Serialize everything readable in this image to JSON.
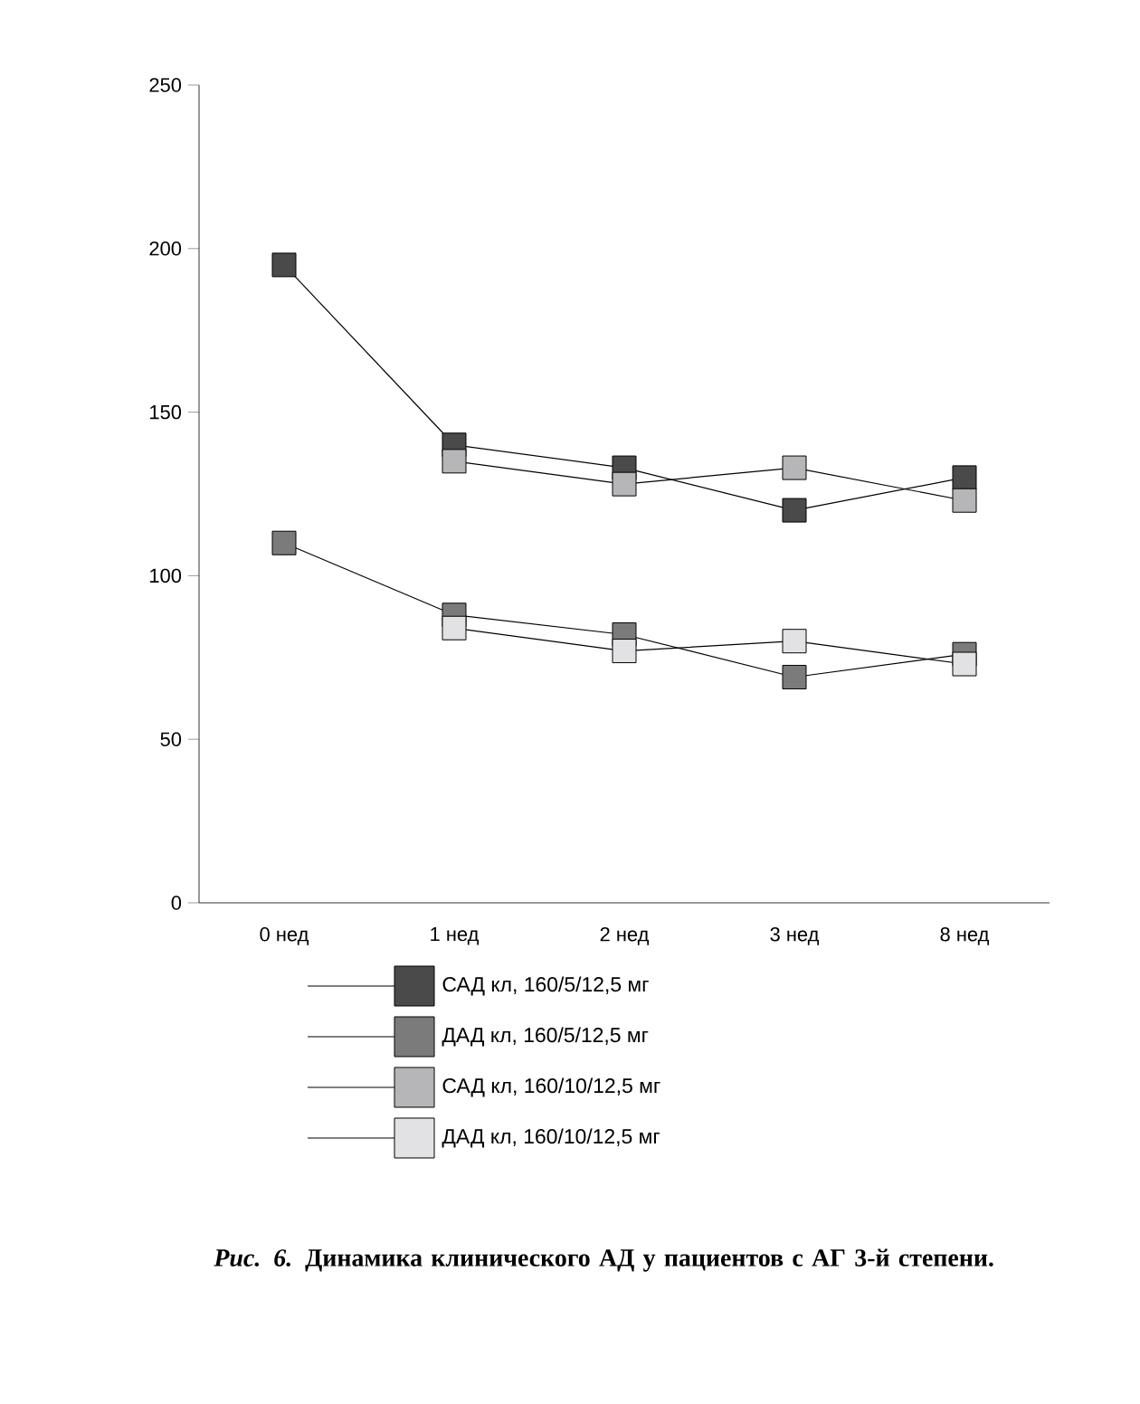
{
  "chart_data": {
    "type": "line",
    "categories": [
      "0 нед",
      "1 нед",
      "2 нед",
      "3 нед",
      "8  нед"
    ],
    "series": [
      {
        "name": "САД кл, 160/5/12,5 мг",
        "color": "#4a4a4a",
        "values": [
          195,
          140,
          133,
          120,
          130
        ]
      },
      {
        "name": "ДАД кл, 160/5/12,5 мг",
        "color": "#7b7b7b",
        "values": [
          110,
          88,
          82,
          69,
          76
        ]
      },
      {
        "name": "САД кл, 160/10/12,5 мг",
        "color": "#b6b6b9",
        "values": [
          null,
          135,
          128,
          133,
          123
        ]
      },
      {
        "name": "ДАД кл, 160/10/12,5 мг",
        "color": "#e2e2e4",
        "values": [
          null,
          84,
          77,
          80,
          73
        ]
      }
    ],
    "ylim": [
      0,
      250
    ],
    "yticks": [
      0,
      50,
      100,
      150,
      200,
      250
    ],
    "legend": "bottom",
    "marker": "square",
    "line_style": "solid",
    "grid": false,
    "annotations": [
      "*Рис. 6.* Динамика клинического АД у пациентов с АГ 3-й степени."
    ]
  }
}
